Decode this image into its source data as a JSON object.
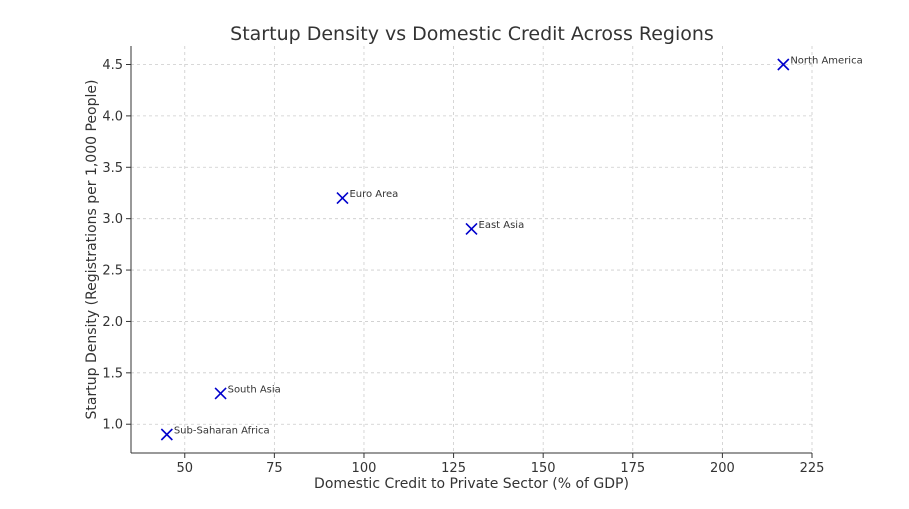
{
  "chart_data": {
    "type": "scatter",
    "title": "Startup Density vs Domestic Credit Across Regions",
    "xlabel": "Domestic Credit to Private Sector (% of GDP)",
    "ylabel": "Startup Density (Registrations per 1,000 People)",
    "xlim": [
      35,
      225
    ],
    "ylim": [
      0.72,
      4.68
    ],
    "x_ticks": [
      50,
      75,
      100,
      125,
      150,
      175,
      200,
      225
    ],
    "y_ticks": [
      1.0,
      1.5,
      2.0,
      2.5,
      3.0,
      3.5,
      4.0,
      4.5
    ],
    "grid": true,
    "marker": "x",
    "marker_color": "#0000cc",
    "points": [
      {
        "label": "North America",
        "x": 217,
        "y": 4.5
      },
      {
        "label": "Euro Area",
        "x": 94,
        "y": 3.2
      },
      {
        "label": "East Asia",
        "x": 130,
        "y": 2.9
      },
      {
        "label": "South Asia",
        "x": 60,
        "y": 1.3
      },
      {
        "label": "Sub-Saharan Africa",
        "x": 45,
        "y": 0.9
      }
    ]
  }
}
